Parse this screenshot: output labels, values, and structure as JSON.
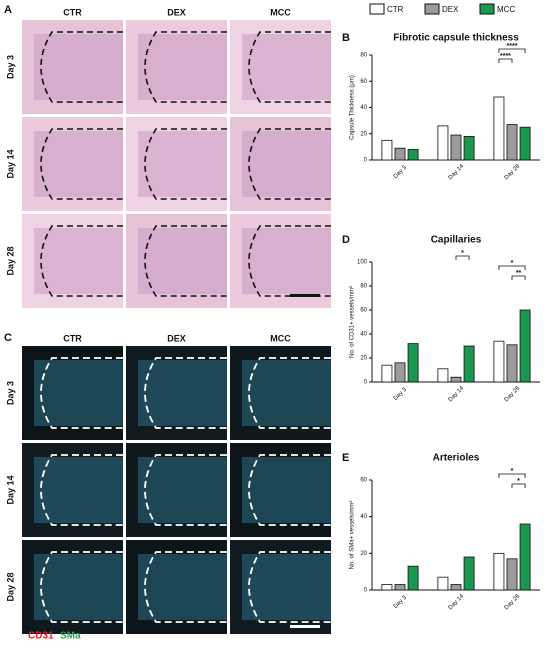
{
  "figure": {
    "panel_a": {
      "label": "A",
      "columns": [
        "CTR",
        "DEX",
        "MCC"
      ],
      "rows": [
        "Day 3",
        "Day 14",
        "Day 28"
      ]
    },
    "panel_c": {
      "label": "C",
      "columns": [
        "CTR",
        "DEX",
        "MCC"
      ],
      "rows": [
        "Day 3",
        "Day 14",
        "Day 28"
      ],
      "stains": [
        {
          "text": "CD31",
          "color": "#e0202a"
        },
        {
          "text": "SMa",
          "color": "#1ea64a"
        }
      ]
    }
  },
  "chart_data": [
    {
      "type": "bar",
      "panel": "B",
      "title": "Fibrotic capsule thickness",
      "ylabel": "Capsule Thickness (μm)",
      "categories": [
        "Day 3",
        "Day 14",
        "Day 28"
      ],
      "series": [
        {
          "name": "CTR",
          "color": "#ffffff",
          "values": [
            15,
            26,
            48
          ]
        },
        {
          "name": "DEX",
          "color": "#9a9a9a",
          "values": [
            9,
            19,
            27
          ]
        },
        {
          "name": "MCC",
          "color": "#1a9850",
          "values": [
            8,
            18,
            25
          ]
        }
      ],
      "ylim": [
        0,
        80
      ],
      "yticks": [
        0,
        20,
        40,
        60,
        80
      ],
      "annotations": [
        {
          "text": "****",
          "category": 2,
          "from": 0,
          "to": 2
        },
        {
          "text": "****",
          "category": 2,
          "from": 0,
          "to": 1
        }
      ]
    },
    {
      "type": "bar",
      "panel": "D",
      "title": "Capillaries",
      "ylabel": "No. of CD31+ vessels/mm²",
      "categories": [
        "Day 3",
        "Day 14",
        "Day 28"
      ],
      "series": [
        {
          "name": "CTR",
          "color": "#ffffff",
          "values": [
            14,
            11,
            34
          ]
        },
        {
          "name": "DEX",
          "color": "#9a9a9a",
          "values": [
            16,
            4,
            31
          ]
        },
        {
          "name": "MCC",
          "color": "#1a9850",
          "values": [
            32,
            30,
            60
          ]
        }
      ],
      "ylim": [
        0,
        100
      ],
      "yticks": [
        0,
        20,
        40,
        60,
        80,
        100
      ],
      "annotations": [
        {
          "text": "*",
          "category": 1,
          "from": 1,
          "to": 2
        },
        {
          "text": "*",
          "category": 2,
          "from": 0,
          "to": 2
        },
        {
          "text": "**",
          "category": 2,
          "from": 1,
          "to": 2
        }
      ]
    },
    {
      "type": "bar",
      "panel": "E",
      "title": "Arterioles",
      "ylabel": "No. of SMa+ vessels/mm²",
      "categories": [
        "Day 3",
        "Day 14",
        "Day 28"
      ],
      "series": [
        {
          "name": "CTR",
          "color": "#ffffff",
          "values": [
            3,
            7,
            20
          ]
        },
        {
          "name": "DEX",
          "color": "#9a9a9a",
          "values": [
            3,
            3,
            17
          ]
        },
        {
          "name": "MCC",
          "color": "#1a9850",
          "values": [
            13,
            18,
            36
          ]
        }
      ],
      "ylim": [
        0,
        60
      ],
      "yticks": [
        0,
        20,
        40,
        60
      ],
      "annotations": [
        {
          "text": "*",
          "category": 2,
          "from": 0,
          "to": 2
        },
        {
          "text": "*",
          "category": 2,
          "from": 1,
          "to": 2
        }
      ]
    }
  ]
}
